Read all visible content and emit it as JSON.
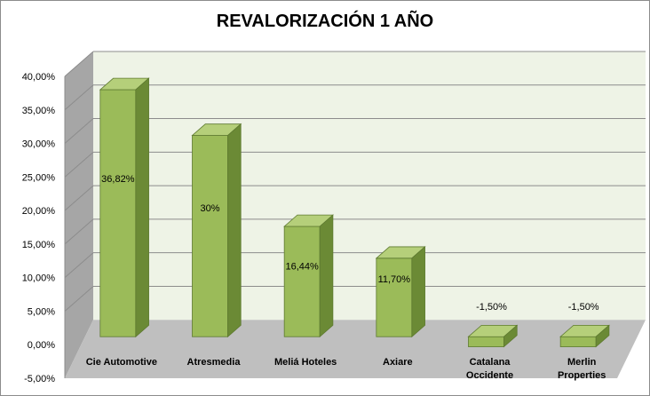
{
  "chart_data": {
    "type": "bar",
    "title": "REVALORIZACIÓN 1 AÑO",
    "categories": [
      "Cie Automotive",
      "Atresmedia",
      "Meliá Hoteles",
      "Axiare",
      "Catalana Occidente",
      "Merlin Properties"
    ],
    "category_lines": [
      [
        "Cie Automotive"
      ],
      [
        "Atresmedia"
      ],
      [
        "Meliá Hoteles"
      ],
      [
        "Axiare"
      ],
      [
        "Catalana",
        "Occidente"
      ],
      [
        "Merlin",
        "Properties"
      ]
    ],
    "values": [
      36.82,
      30,
      16.44,
      11.7,
      -1.5,
      -1.5
    ],
    "data_labels": [
      "36,82%",
      "30%",
      "16,44%",
      "11,70%",
      "-1,50%",
      "-1,50%"
    ],
    "y_ticks": [
      "-5,00%",
      "0,00%",
      "5,00%",
      "10,00%",
      "15,00%",
      "20,00%",
      "25,00%",
      "30,00%",
      "35,00%",
      "40,00%"
    ],
    "y_tick_values": [
      -5,
      0,
      5,
      10,
      15,
      20,
      25,
      30,
      35,
      40
    ],
    "ylim": [
      -5,
      40
    ],
    "grid": true,
    "style": "3d-column",
    "colors": {
      "bar_front": "#9bbb59",
      "bar_top": "#b5cf7a",
      "bar_side": "#6b8a35",
      "plot_back": "#eef3e6",
      "wall_side": "#a6a6a6",
      "floor": "#bfbfbf",
      "grid": "#8c8c8c"
    }
  }
}
